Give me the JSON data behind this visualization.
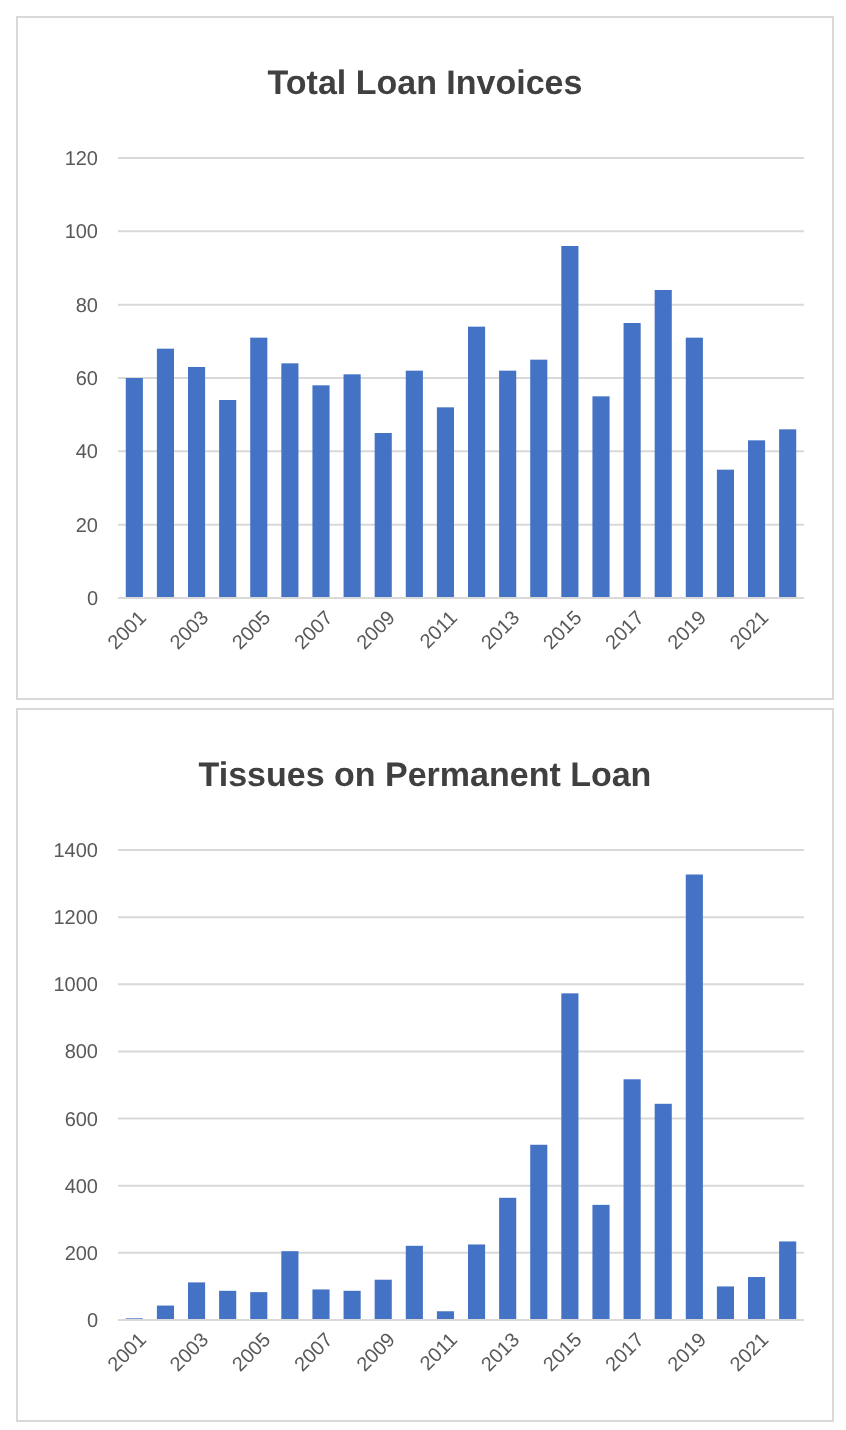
{
  "chart_data": [
    {
      "type": "bar",
      "title": "Total Loan Invoices",
      "categories": [
        "2001",
        null,
        "2003",
        null,
        "2005",
        null,
        "2007",
        null,
        "2009",
        null,
        "2011",
        null,
        "2013",
        null,
        "2015",
        null,
        "2017",
        null,
        "2019",
        null,
        "2021",
        null
      ],
      "values": [
        60,
        68,
        63,
        54,
        71,
        64,
        58,
        61,
        45,
        62,
        52,
        74,
        62,
        65,
        96,
        55,
        75,
        84,
        71,
        35,
        43,
        46
      ],
      "color": "#4472c4",
      "ylim": [
        0,
        120
      ],
      "yticks": [
        0,
        20,
        40,
        60,
        80,
        100,
        120
      ],
      "grid": "y"
    },
    {
      "type": "bar",
      "title": "Tissues on Permanent Loan",
      "categories": [
        "2001",
        null,
        "2003",
        null,
        "2005",
        null,
        "2007",
        null,
        "2009",
        null,
        "2011",
        null,
        "2013",
        null,
        "2015",
        null,
        "2017",
        null,
        "2019",
        null,
        "2021",
        null
      ],
      "values": [
        5,
        43,
        112,
        87,
        83,
        205,
        91,
        87,
        120,
        221,
        26,
        225,
        364,
        522,
        973,
        343,
        717,
        644,
        1327,
        100,
        128,
        234
      ],
      "color": "#4472c4",
      "ylim": [
        0,
        1400
      ],
      "yticks": [
        0,
        200,
        400,
        600,
        800,
        1000,
        1200,
        1400
      ],
      "grid": "y"
    }
  ]
}
